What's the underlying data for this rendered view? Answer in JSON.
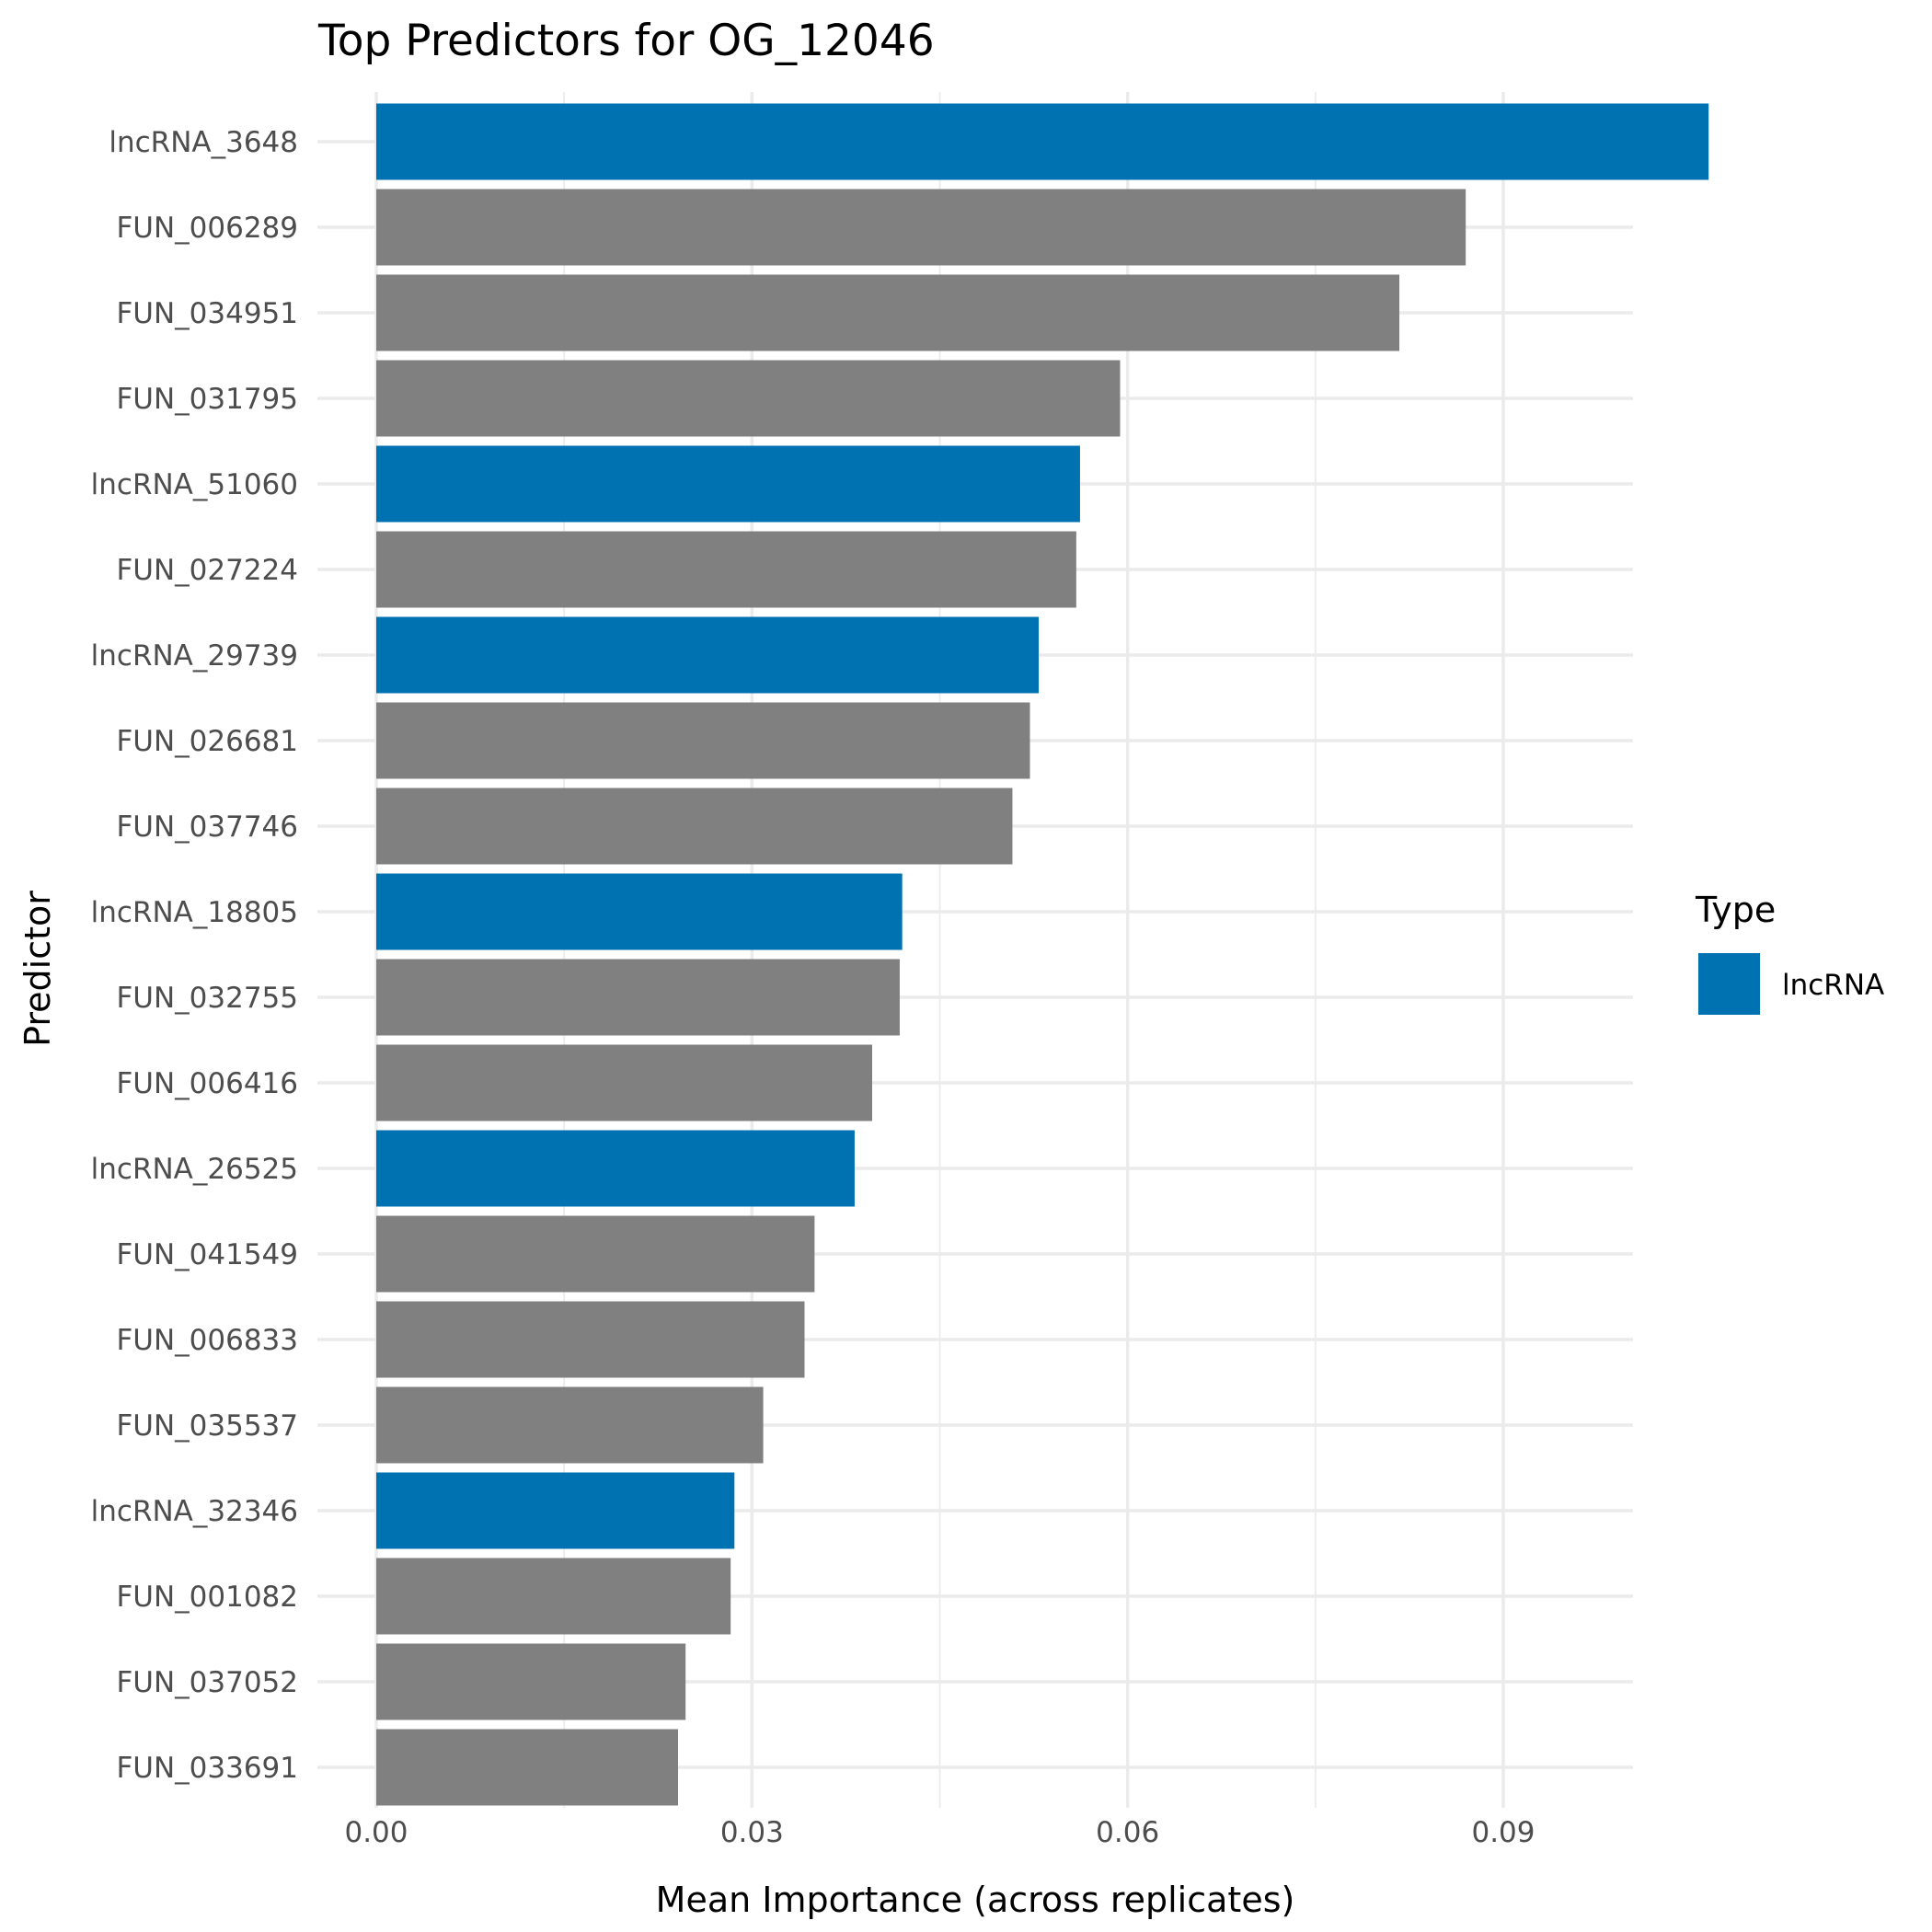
{
  "chart_data": {
    "type": "bar",
    "orientation": "horizontal",
    "title": "Top Predictors for OG_12046",
    "xlabel": "Mean Importance (across replicates)",
    "ylabel": "Predictor",
    "xlim": [
      0,
      0.1115
    ],
    "xticks": [
      0.0,
      0.03,
      0.06,
      0.09
    ],
    "xtick_labels": [
      "0.00",
      "0.03",
      "0.06",
      "0.09"
    ],
    "grid": true,
    "legend": {
      "title": "Type",
      "placement": "right",
      "entries": [
        {
          "label": "lncRNA",
          "color": "#0072B2"
        }
      ]
    },
    "colors": {
      "lncRNA": "#0072B2",
      "other": "#808080"
    },
    "categories": [
      "lncRNA_3648",
      "FUN_006289",
      "FUN_034951",
      "FUN_031795",
      "lncRNA_51060",
      "FUN_027224",
      "lncRNA_29739",
      "FUN_026681",
      "FUN_037746",
      "lncRNA_18805",
      "FUN_032755",
      "FUN_006416",
      "lncRNA_26525",
      "FUN_041549",
      "FUN_006833",
      "FUN_035537",
      "lncRNA_32346",
      "FUN_001082",
      "FUN_037052",
      "FUN_033691"
    ],
    "values": [
      0.1064,
      0.087,
      0.0817,
      0.0594,
      0.0562,
      0.0559,
      0.0529,
      0.0522,
      0.0508,
      0.042,
      0.0418,
      0.0396,
      0.0382,
      0.035,
      0.0342,
      0.0309,
      0.0286,
      0.0283,
      0.0247,
      0.0241
    ],
    "types": [
      "lncRNA",
      "other",
      "other",
      "other",
      "lncRNA",
      "other",
      "lncRNA",
      "other",
      "other",
      "lncRNA",
      "other",
      "other",
      "lncRNA",
      "other",
      "other",
      "other",
      "lncRNA",
      "other",
      "other",
      "other"
    ]
  }
}
